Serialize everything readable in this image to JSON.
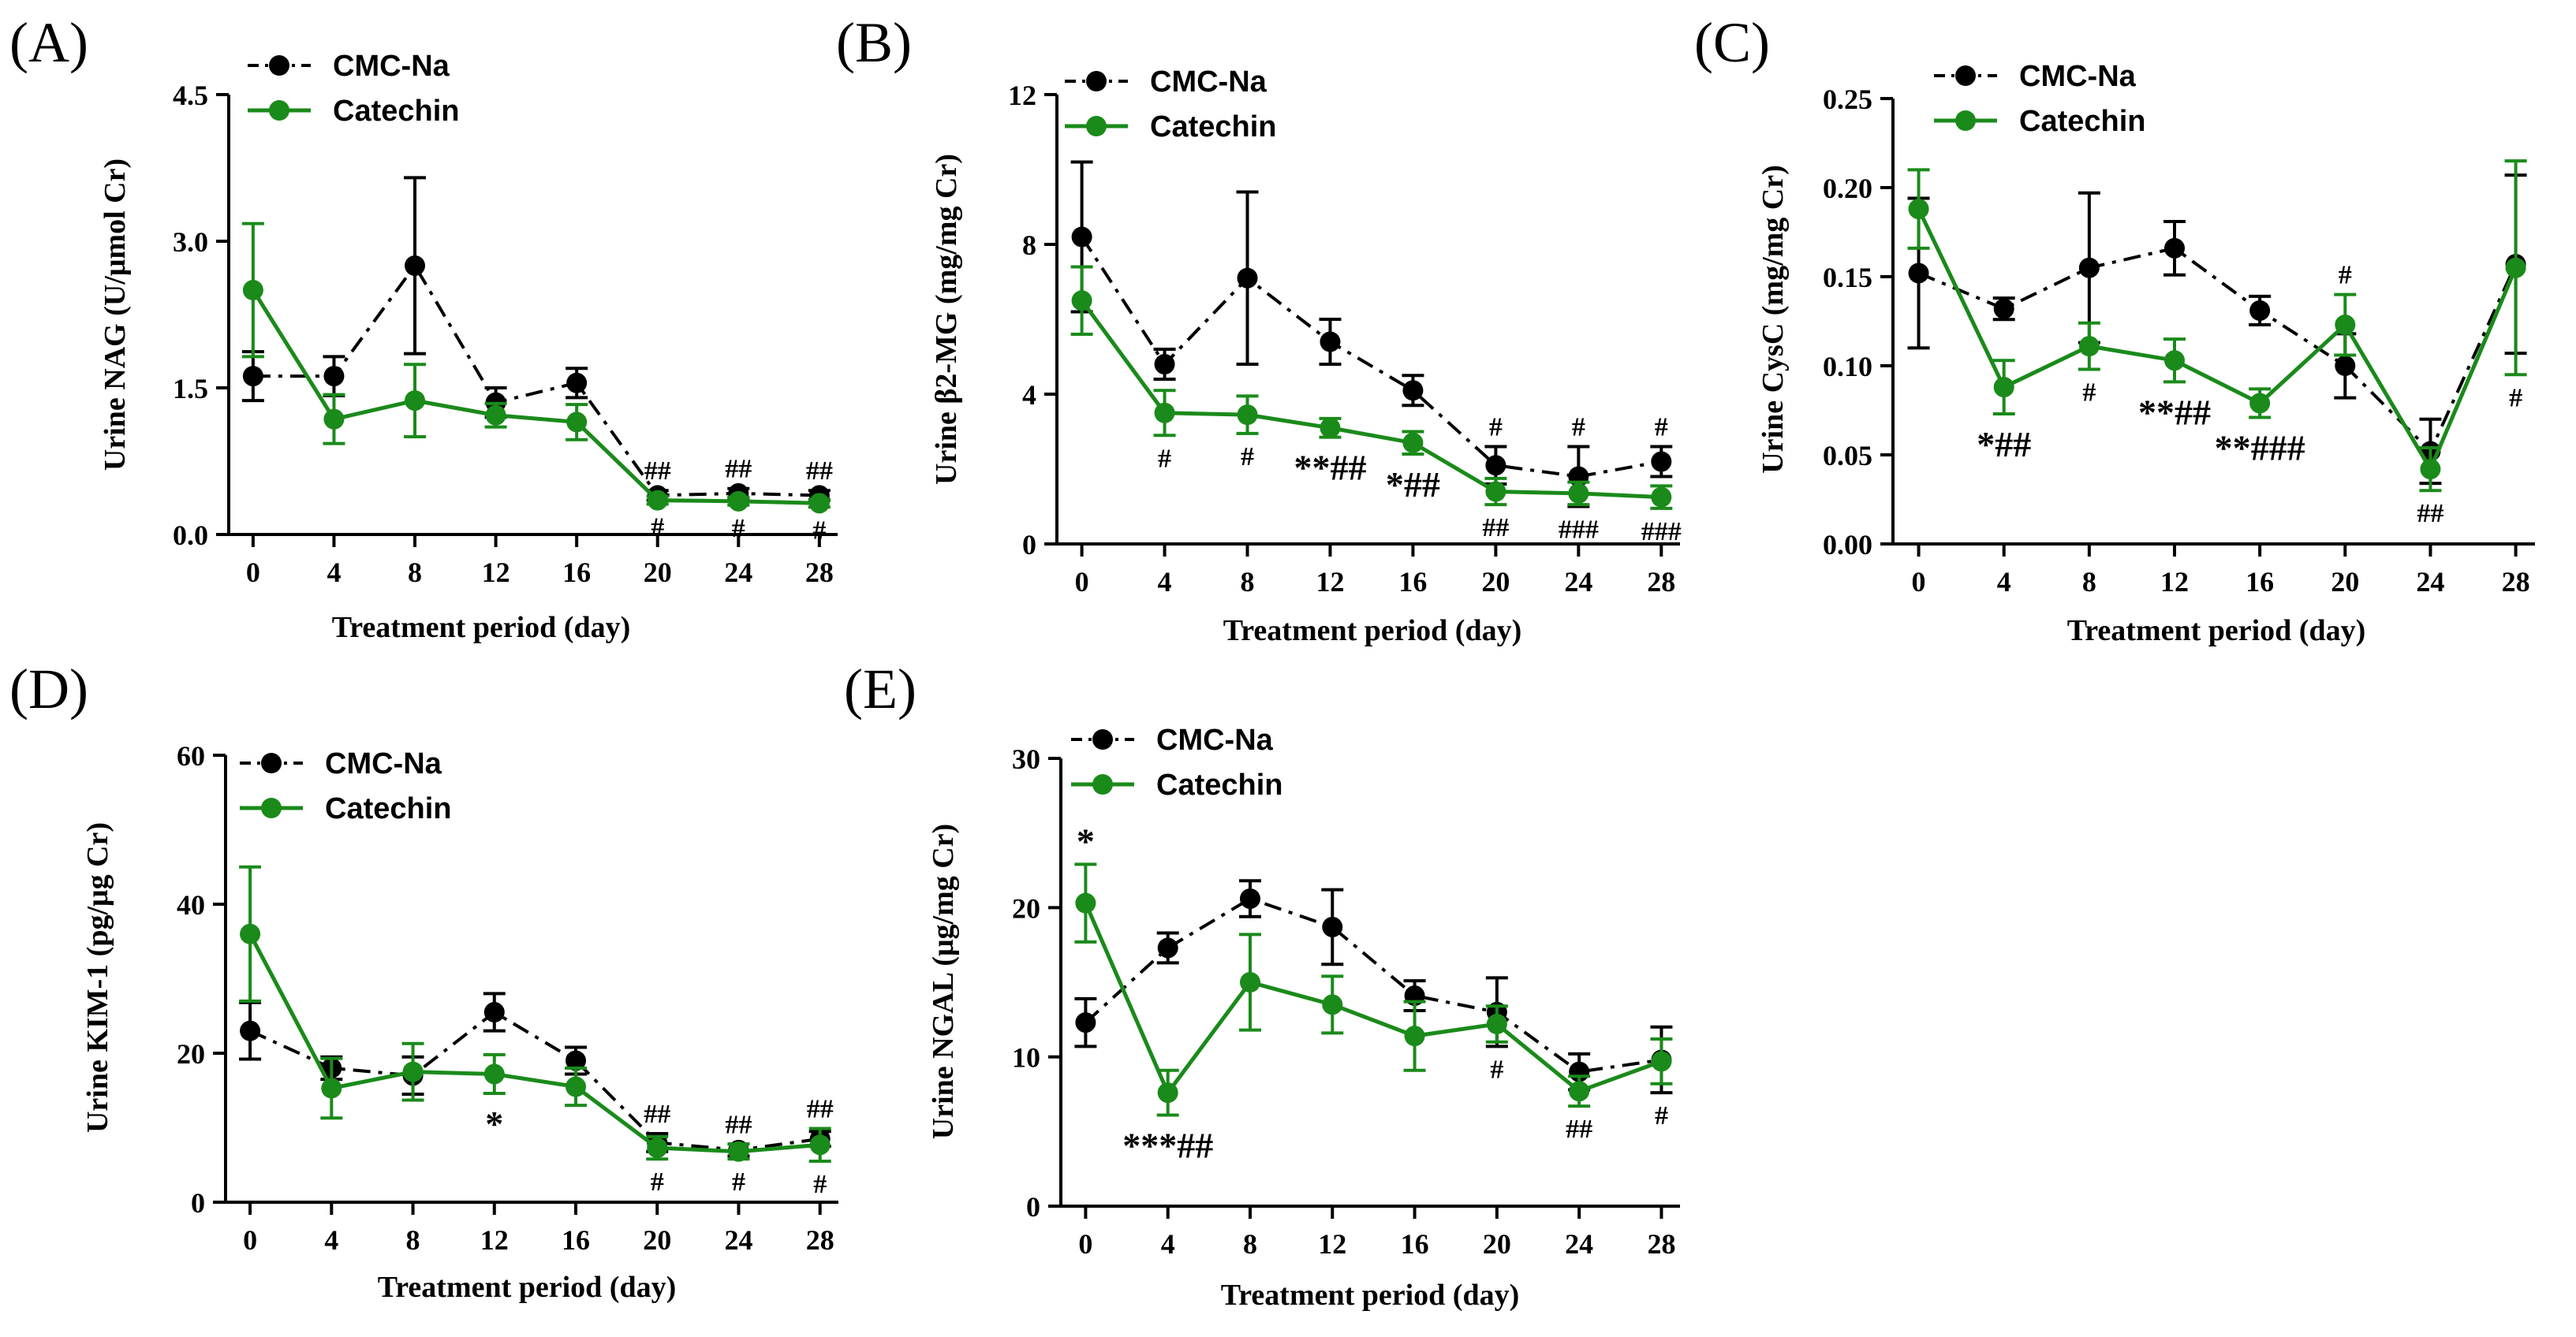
{
  "chart_data": [
    {
      "type": "line",
      "panel": "(A)",
      "title": "",
      "xlabel": "Treatment period (day)",
      "ylabel": "Urine NAG (U/μmol Cr)",
      "x": [
        0,
        4,
        8,
        12,
        16,
        20,
        24,
        28
      ],
      "xticks": [
        "0",
        "4",
        "8",
        "12",
        "16",
        "20",
        "24",
        "28"
      ],
      "ylim": [
        0,
        4.5
      ],
      "yticks": [
        "0.0",
        "1.5",
        "3.0",
        "4.5"
      ],
      "legend": "top-left",
      "series": [
        {
          "name": "CMC-Na",
          "color": "#000000",
          "style": "dashdot",
          "values": [
            1.62,
            1.62,
            2.75,
            1.35,
            1.55,
            0.4,
            0.42,
            0.4
          ],
          "errors": [
            0.25,
            0.2,
            0.9,
            0.15,
            0.15,
            0.05,
            0.05,
            0.05
          ]
        },
        {
          "name": "Catechin",
          "color": "#1a8a1a",
          "style": "solid",
          "values": [
            2.5,
            1.18,
            1.37,
            1.22,
            1.15,
            0.35,
            0.34,
            0.32
          ],
          "errors": [
            0.68,
            0.25,
            0.37,
            0.12,
            0.18,
            0.04,
            0.04,
            0.04
          ]
        }
      ],
      "annotations": [
        {
          "text": "##",
          "x": 20,
          "pos": "above"
        },
        {
          "text": "##",
          "x": 24,
          "pos": "above"
        },
        {
          "text": "##",
          "x": 28,
          "pos": "above"
        },
        {
          "text": "#",
          "x": 20,
          "pos": "below"
        },
        {
          "text": "#",
          "x": 24,
          "pos": "below"
        },
        {
          "text": "#",
          "x": 28,
          "pos": "below"
        }
      ]
    },
    {
      "type": "line",
      "panel": "(B)",
      "title": "",
      "xlabel": "Treatment period (day)",
      "ylabel": "Urine β2-MG (mg/mg Cr)",
      "x": [
        0,
        4,
        8,
        12,
        16,
        20,
        24,
        28
      ],
      "xticks": [
        "0",
        "4",
        "8",
        "12",
        "16",
        "20",
        "24",
        "28"
      ],
      "ylim": [
        0,
        12
      ],
      "yticks": [
        "0",
        "4",
        "8",
        "12"
      ],
      "legend": "top-left",
      "series": [
        {
          "name": "CMC-Na",
          "color": "#000000",
          "style": "dashdot",
          "values": [
            8.2,
            4.8,
            7.1,
            5.4,
            4.1,
            2.1,
            1.8,
            2.2
          ],
          "errors": [
            2.0,
            0.4,
            2.3,
            0.6,
            0.4,
            0.5,
            0.8,
            0.4
          ]
        },
        {
          "name": "Catechin",
          "color": "#1a8a1a",
          "style": "solid",
          "values": [
            6.5,
            3.5,
            3.45,
            3.1,
            2.7,
            1.4,
            1.35,
            1.25
          ],
          "errors": [
            0.9,
            0.6,
            0.5,
            0.25,
            0.3,
            0.35,
            0.3,
            0.3
          ]
        }
      ],
      "annotations": [
        {
          "text": "#",
          "x": 4,
          "pos": "below"
        },
        {
          "text": "#",
          "x": 8,
          "pos": "below"
        },
        {
          "text": "**##",
          "x": 12,
          "pos": "below"
        },
        {
          "text": "*##",
          "x": 16,
          "pos": "below"
        },
        {
          "text": "#",
          "x": 20,
          "pos": "above"
        },
        {
          "text": "#",
          "x": 24,
          "pos": "above"
        },
        {
          "text": "#",
          "x": 28,
          "pos": "above"
        },
        {
          "text": "##",
          "x": 20,
          "pos": "below"
        },
        {
          "text": "###",
          "x": 24,
          "pos": "below"
        },
        {
          "text": "###",
          "x": 28,
          "pos": "below"
        }
      ]
    },
    {
      "type": "line",
      "panel": "(C)",
      "title": "",
      "xlabel": "Treatment period (day)",
      "ylabel": "Urine CysC (mg/mg Cr)",
      "x": [
        0,
        4,
        8,
        12,
        16,
        20,
        24,
        28
      ],
      "xticks": [
        "0",
        "4",
        "8",
        "12",
        "16",
        "20",
        "24",
        "28"
      ],
      "ylim": [
        0,
        0.25
      ],
      "yticks": [
        "0.00",
        "0.05",
        "0.10",
        "0.15",
        "0.20",
        "0.25"
      ],
      "legend": "top-left",
      "series": [
        {
          "name": "CMC-Na",
          "color": "#000000",
          "style": "dashdot",
          "values": [
            0.152,
            0.132,
            0.155,
            0.166,
            0.131,
            0.1,
            0.052,
            0.157
          ],
          "errors": [
            0.042,
            0.006,
            0.042,
            0.015,
            0.008,
            0.018,
            0.018,
            0.05
          ]
        },
        {
          "name": "Catechin",
          "color": "#1a8a1a",
          "style": "solid",
          "values": [
            0.188,
            0.088,
            0.111,
            0.103,
            0.079,
            0.123,
            0.042,
            0.155
          ],
          "errors": [
            0.022,
            0.015,
            0.013,
            0.012,
            0.008,
            0.017,
            0.012,
            0.06
          ]
        }
      ],
      "annotations": [
        {
          "text": "*##",
          "x": 4,
          "pos": "below"
        },
        {
          "text": "#",
          "x": 8,
          "pos": "below"
        },
        {
          "text": "**##",
          "x": 12,
          "pos": "below"
        },
        {
          "text": "**###",
          "x": 16,
          "pos": "below"
        },
        {
          "text": "#",
          "x": 20,
          "pos": "above"
        },
        {
          "text": "##",
          "x": 24,
          "pos": "below"
        },
        {
          "text": "#",
          "x": 28,
          "pos": "below"
        }
      ]
    },
    {
      "type": "line",
      "panel": "(D)",
      "title": "",
      "xlabel": "Treatment period (day)",
      "ylabel": "Urine KIM-1 (pg/μg Cr)",
      "x": [
        0,
        4,
        8,
        12,
        16,
        20,
        24,
        28
      ],
      "xticks": [
        "0",
        "4",
        "8",
        "12",
        "16",
        "20",
        "24",
        "28"
      ],
      "ylim": [
        0,
        60
      ],
      "yticks": [
        "0",
        "20",
        "40",
        "60"
      ],
      "legend": "top-left",
      "series": [
        {
          "name": "CMC-Na",
          "color": "#000000",
          "style": "dashdot",
          "values": [
            23,
            18,
            17,
            25.5,
            19,
            8,
            7,
            8.5
          ],
          "errors": [
            3.8,
            1.5,
            2.5,
            2.5,
            1.8,
            1.2,
            0.8,
            1.0
          ]
        },
        {
          "name": "Catechin",
          "color": "#1a8a1a",
          "style": "solid",
          "values": [
            36,
            15.3,
            17.5,
            17.2,
            15.5,
            7.3,
            6.8,
            7.7
          ],
          "errors": [
            9,
            4,
            3.8,
            2.6,
            2.5,
            1.5,
            1.0,
            2.2
          ]
        }
      ],
      "annotations": [
        {
          "text": "*",
          "x": 12,
          "pos": "below"
        },
        {
          "text": "##",
          "x": 20,
          "pos": "above"
        },
        {
          "text": "##",
          "x": 24,
          "pos": "above"
        },
        {
          "text": "##",
          "x": 28,
          "pos": "above"
        },
        {
          "text": "#",
          "x": 20,
          "pos": "below"
        },
        {
          "text": "#",
          "x": 24,
          "pos": "below"
        },
        {
          "text": "#",
          "x": 28,
          "pos": "below"
        }
      ]
    },
    {
      "type": "line",
      "panel": "(E)",
      "title": "",
      "xlabel": "Treatment period (day)",
      "ylabel": "Urine NGAL (μg/mg Cr)",
      "x": [
        0,
        4,
        8,
        12,
        16,
        20,
        24,
        28
      ],
      "xticks": [
        "0",
        "4",
        "8",
        "12",
        "16",
        "20",
        "24",
        "28"
      ],
      "ylim": [
        0,
        30
      ],
      "yticks": [
        "0",
        "10",
        "20",
        "30"
      ],
      "legend": "top-left",
      "series": [
        {
          "name": "CMC-Na",
          "color": "#000000",
          "style": "dashdot",
          "values": [
            12.3,
            17.3,
            20.6,
            18.7,
            14.1,
            13.0,
            9.0,
            9.8
          ],
          "errors": [
            1.6,
            1.0,
            1.2,
            2.5,
            1.0,
            2.3,
            1.2,
            2.2
          ]
        },
        {
          "name": "Catechin",
          "color": "#1a8a1a",
          "style": "solid",
          "values": [
            20.3,
            7.6,
            15.0,
            13.5,
            11.4,
            12.2,
            7.7,
            9.7
          ],
          "errors": [
            2.6,
            1.5,
            3.2,
            1.9,
            2.3,
            1.2,
            1.0,
            1.5
          ]
        }
      ],
      "annotations": [
        {
          "text": "*",
          "x": 0,
          "pos": "above"
        },
        {
          "text": "***##",
          "x": 4,
          "pos": "below"
        },
        {
          "text": "#",
          "x": 20,
          "pos": "below"
        },
        {
          "text": "##",
          "x": 24,
          "pos": "below"
        },
        {
          "text": "#",
          "x": 28,
          "pos": "below"
        }
      ]
    }
  ]
}
